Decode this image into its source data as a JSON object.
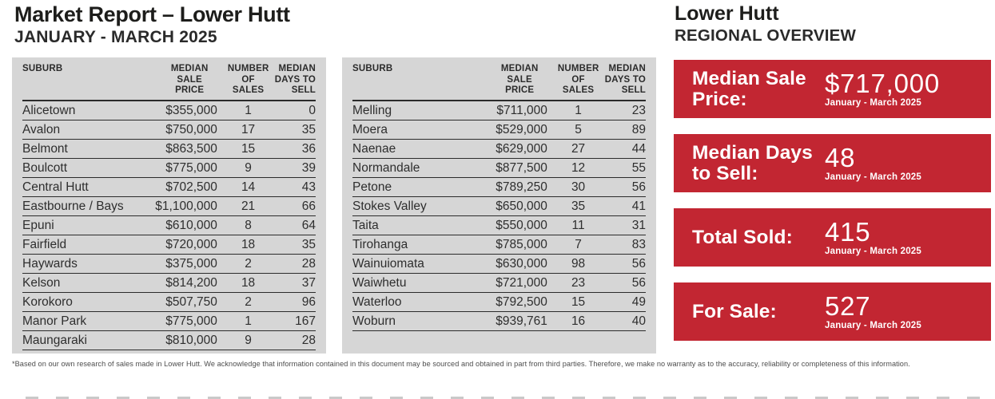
{
  "report": {
    "title": "Market Report – Lower Hutt",
    "subtitle": "JANUARY - MARCH 2025"
  },
  "tables": {
    "headers": {
      "suburb": "SUBURB",
      "price": "MEDIAN\nSALE\nPRICE",
      "sales": "NUMBER\nOF SALES",
      "days": "MEDIAN\nDAYS TO\nSELL"
    },
    "left_rows": [
      {
        "suburb": "Alicetown",
        "price": "$355,000",
        "sales": "1",
        "days": "0"
      },
      {
        "suburb": "Avalon",
        "price": "$750,000",
        "sales": "17",
        "days": "35"
      },
      {
        "suburb": "Belmont",
        "price": "$863,500",
        "sales": "15",
        "days": "36"
      },
      {
        "suburb": "Boulcott",
        "price": "$775,000",
        "sales": "9",
        "days": "39"
      },
      {
        "suburb": "Central Hutt",
        "price": "$702,500",
        "sales": "14",
        "days": "43"
      },
      {
        "suburb": "Eastbourne / Bays",
        "price": "$1,100,000",
        "sales": "21",
        "days": "66"
      },
      {
        "suburb": "Epuni",
        "price": "$610,000",
        "sales": "8",
        "days": "64"
      },
      {
        "suburb": "Fairfield",
        "price": "$720,000",
        "sales": "18",
        "days": "35"
      },
      {
        "suburb": "Haywards",
        "price": "$375,000",
        "sales": "2",
        "days": "28"
      },
      {
        "suburb": "Kelson",
        "price": "$814,200",
        "sales": "18",
        "days": "37"
      },
      {
        "suburb": "Korokoro",
        "price": "$507,750",
        "sales": "2",
        "days": "96"
      },
      {
        "suburb": "Manor Park",
        "price": "$775,000",
        "sales": "1",
        "days": "167"
      },
      {
        "suburb": "Maungaraki",
        "price": "$810,000",
        "sales": "9",
        "days": "28"
      }
    ],
    "right_rows": [
      {
        "suburb": "Melling",
        "price": "$711,000",
        "sales": "1",
        "days": "23"
      },
      {
        "suburb": "Moera",
        "price": "$529,000",
        "sales": "5",
        "days": "89"
      },
      {
        "suburb": "Naenae",
        "price": "$629,000",
        "sales": "27",
        "days": "44"
      },
      {
        "suburb": "Normandale",
        "price": "$877,500",
        "sales": "12",
        "days": "55"
      },
      {
        "suburb": "Petone",
        "price": "$789,250",
        "sales": "30",
        "days": "56"
      },
      {
        "suburb": "Stokes Valley",
        "price": "$650,000",
        "sales": "35",
        "days": "41"
      },
      {
        "suburb": "Taita",
        "price": "$550,000",
        "sales": "11",
        "days": "31"
      },
      {
        "suburb": "Tirohanga",
        "price": "$785,000",
        "sales": "7",
        "days": "83"
      },
      {
        "suburb": "Wainuiomata",
        "price": "$630,000",
        "sales": "98",
        "days": "56"
      },
      {
        "suburb": "Waiwhetu",
        "price": "$721,000",
        "sales": "23",
        "days": "56"
      },
      {
        "suburb": "Waterloo",
        "price": "$792,500",
        "sales": "15",
        "days": "49"
      },
      {
        "suburb": "Woburn",
        "price": "$939,761",
        "sales": "16",
        "days": "40"
      }
    ]
  },
  "overview": {
    "title": "Lower Hutt",
    "subtitle": "REGIONAL OVERVIEW",
    "stats": [
      {
        "label": "Median Sale Price:",
        "value": "$717,000",
        "period": "January - March 2025"
      },
      {
        "label": "Median Days to Sell:",
        "value": "48",
        "period": "January - March 2025"
      },
      {
        "label": "Total Sold:",
        "value": "415",
        "period": "January - March 2025"
      },
      {
        "label": "For Sale:",
        "value": "527",
        "period": "January - March 2025"
      }
    ]
  },
  "footnote": "*Based on our own research of sales made in Lower Hutt. We acknowledge that information contained in this document may be sourced and obtained in part from third parties. Therefore, we make no warranty as to the accuracy, reliability or completeness of this information.",
  "colors": {
    "accent_red": "#c22632",
    "panel_gray": "#d6d6d6",
    "line_dark": "#2b2b2b"
  }
}
